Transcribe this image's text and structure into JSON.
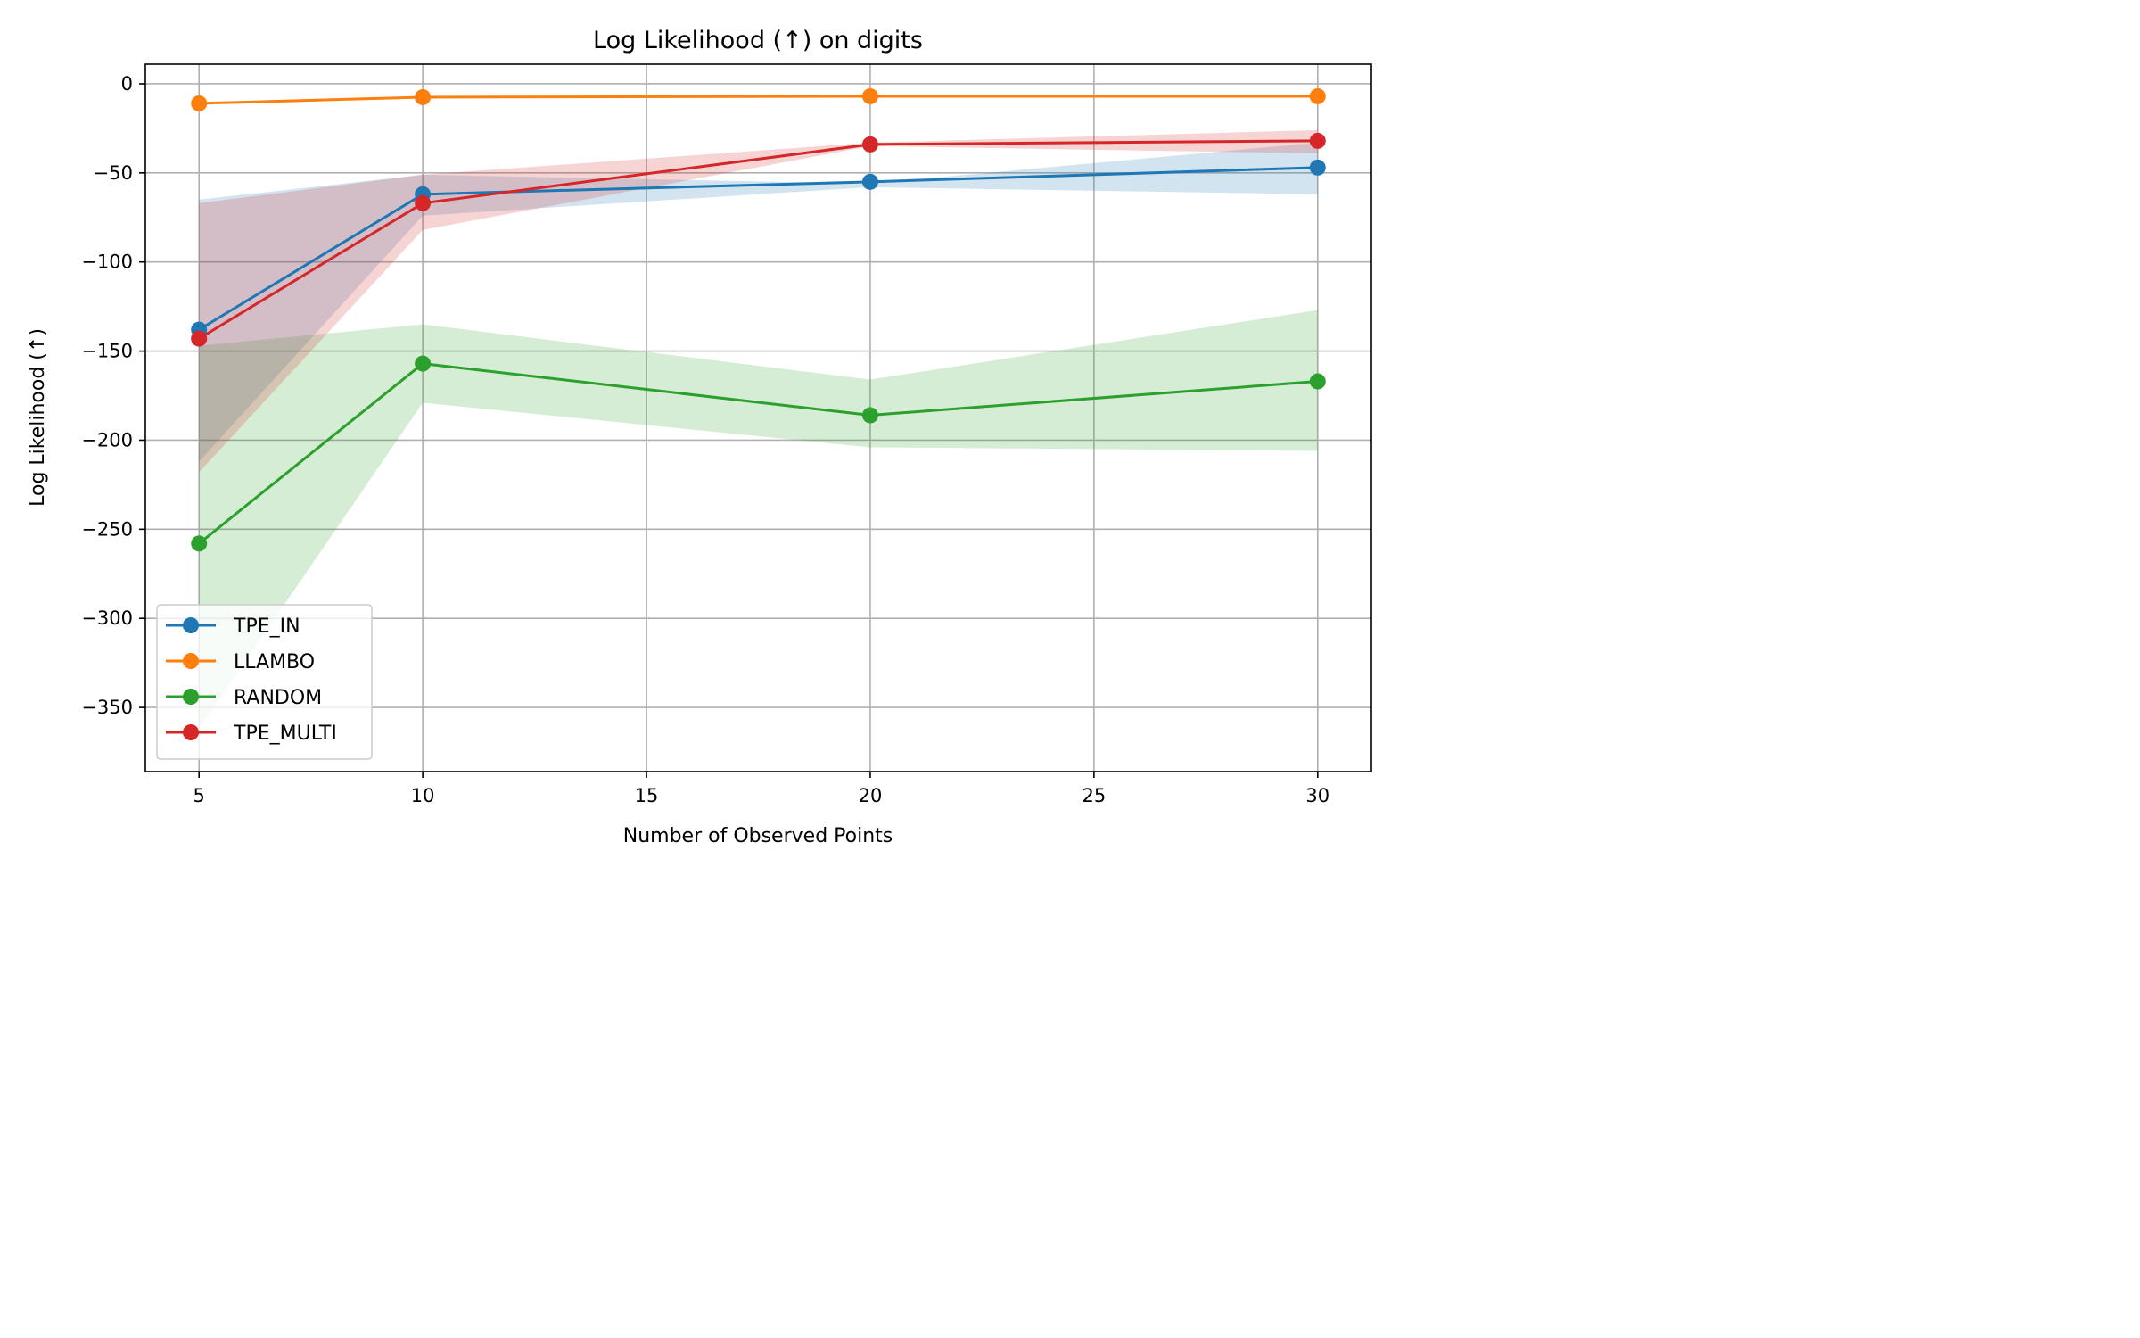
{
  "chart_data": {
    "type": "line",
    "title": "Log Likelihood (↑) on digits",
    "xlabel": "Number of Observed Points",
    "ylabel": "Log Likelihood (↑)",
    "x": [
      5,
      10,
      20,
      30
    ],
    "xlim": [
      3.8,
      31.2
    ],
    "ylim": [
      -386,
      11
    ],
    "xticks": [
      5,
      10,
      15,
      20,
      25,
      30
    ],
    "yticks": [
      0,
      -50,
      -100,
      -150,
      -200,
      -250,
      -300,
      -350
    ],
    "ytick_labels": [
      "0",
      "−50",
      "−100",
      "−150",
      "−200",
      "−250",
      "−300",
      "−350"
    ],
    "grid": true,
    "legend_position": "lower-left",
    "series": [
      {
        "name": "TPE_IN",
        "color": "#1f77b4",
        "values": [
          -138,
          -62,
          -55,
          -47
        ],
        "band_upper": [
          -65,
          -51,
          -56,
          -33
        ],
        "band_lower": [
          -212,
          -74,
          -58,
          -62
        ]
      },
      {
        "name": "LLAMBO",
        "color": "#ff7f0e",
        "values": [
          -11,
          -7.5,
          -7,
          -7
        ],
        "band_upper": [
          -11,
          -7.5,
          -7,
          -7
        ],
        "band_lower": [
          -11,
          -7.5,
          -7,
          -7
        ]
      },
      {
        "name": "RANDOM",
        "color": "#2ca02c",
        "values": [
          -258,
          -157,
          -186,
          -167
        ],
        "band_upper": [
          -147,
          -135,
          -166,
          -127
        ],
        "band_lower": [
          -362,
          -179,
          -204,
          -206
        ]
      },
      {
        "name": "TPE_MULTI",
        "color": "#d62728",
        "values": [
          -143,
          -67,
          -34,
          -32
        ],
        "band_upper": [
          -67,
          -51,
          -33,
          -26
        ],
        "band_lower": [
          -218,
          -82,
          -35,
          -39
        ]
      }
    ]
  }
}
